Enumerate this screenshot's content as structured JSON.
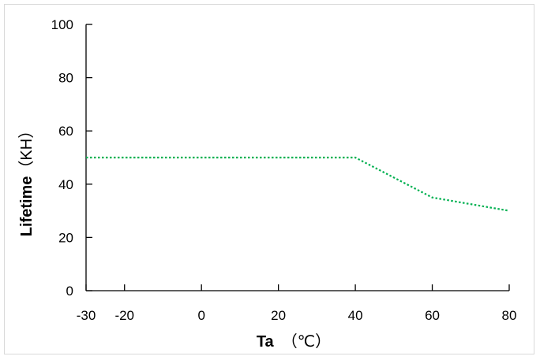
{
  "chart_data": {
    "type": "line",
    "title": "",
    "xlabel": "Ta",
    "xlabel_unit": "（℃）",
    "ylabel": "Lifetime",
    "ylabel_unit": "（KH）",
    "xlim": [
      -30,
      80
    ],
    "ylim": [
      0,
      100
    ],
    "xticks": [
      -30,
      -20,
      0,
      20,
      40,
      60,
      80
    ],
    "yticks": [
      0,
      20,
      40,
      60,
      80,
      100
    ],
    "grid": false,
    "legend": "none",
    "series": [
      {
        "color": "#00b050",
        "line_style": "dotted",
        "x": [
          -30,
          40,
          60,
          80
        ],
        "y": [
          50,
          50,
          35,
          30
        ]
      }
    ]
  }
}
